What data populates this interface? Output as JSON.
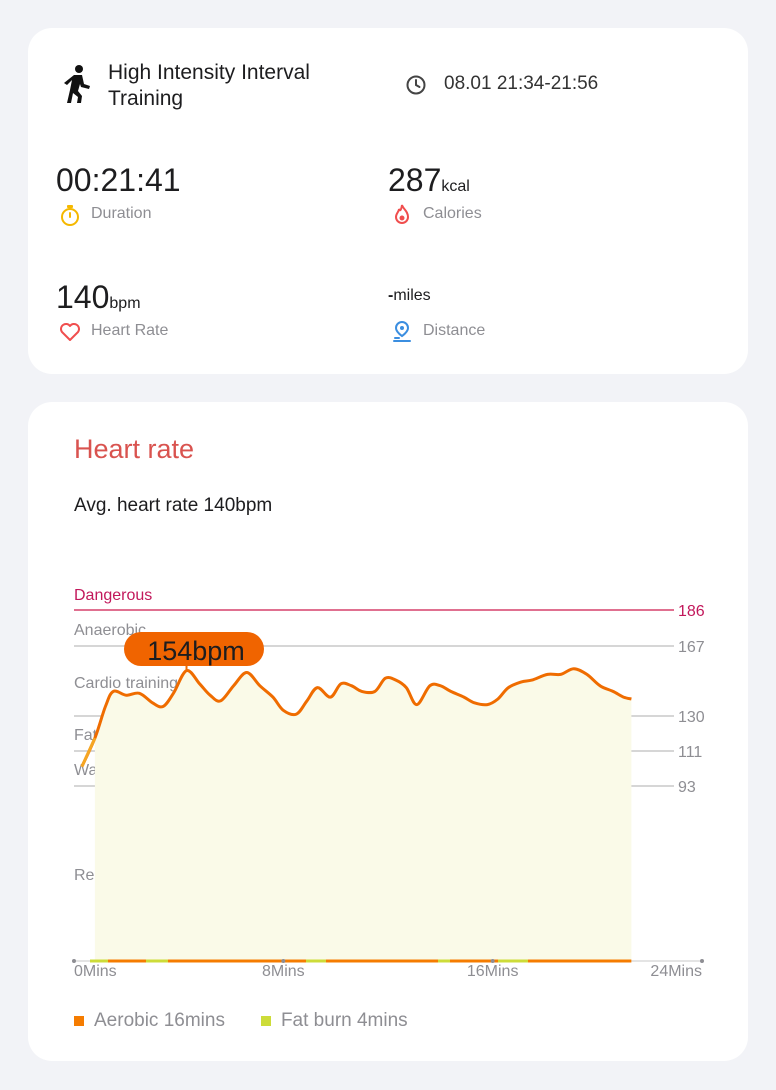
{
  "summary": {
    "workout_name": "High Intensity Interval Training",
    "workout_icon": "running-person-icon",
    "time_range": "08.01 21:34-21:56",
    "duration": {
      "value": "00:21:41",
      "label": "Duration",
      "icon": "stopwatch-icon",
      "color": "#f5b800"
    },
    "calories": {
      "value": "287",
      "unit": "kcal",
      "label": "Calories",
      "icon": "flame-icon",
      "color": "#f04e4e"
    },
    "heart_rate": {
      "value": "140",
      "unit": "bpm",
      "label": "Heart Rate",
      "icon": "heart-icon",
      "color": "#f04e4e"
    },
    "distance": {
      "value": "-",
      "unit": "miles",
      "label": "Distance",
      "icon": "location-pin-icon",
      "color": "#3b8ee0"
    }
  },
  "heart_rate_card": {
    "title": "Heart rate",
    "avg_text": "Avg. heart rate 140bpm",
    "tooltip": "154bpm",
    "legend": [
      {
        "label": "Aerobic 16mins",
        "color": "#f57c00"
      },
      {
        "label": "Fat burn 4mins",
        "color": "#cddc39"
      }
    ]
  },
  "chart_data": {
    "type": "line",
    "x_unit": "mins",
    "x_ticks": [
      "0Mins",
      "8Mins",
      "16Mins",
      "24Mins"
    ],
    "xlim": [
      0,
      24
    ],
    "ylim": [
      60,
      186
    ],
    "zones": [
      {
        "name": "Dangerous",
        "threshold": 186
      },
      {
        "name": "Anaerobic",
        "threshold": 167
      },
      {
        "name": "Cardio training",
        "threshold": 130
      },
      {
        "name": "Fat burning",
        "threshold": 111
      },
      {
        "name": "Warm up",
        "threshold": 93
      },
      {
        "name": "Resting",
        "threshold": null
      }
    ],
    "series": [
      {
        "x": [
          0.3,
          0.8,
          1.2,
          1.5,
          2.0,
          2.5,
          3.0,
          3.4,
          3.8,
          4.3,
          4.8,
          5.2,
          5.6,
          6.1,
          6.6,
          7.1,
          7.6,
          8.0,
          8.5,
          8.9,
          9.3,
          9.8,
          10.2,
          10.6,
          11.0,
          11.5,
          11.9,
          12.3,
          12.7,
          13.1,
          13.6,
          14.0,
          14.4,
          14.9,
          15.3,
          15.8,
          16.2,
          16.6,
          17.1,
          17.5,
          18.1,
          18.6,
          19.1,
          19.6,
          20.1,
          20.6,
          21.0,
          21.3
        ],
        "y": [
          103,
          118,
          135,
          143,
          141,
          142,
          137,
          135,
          142,
          154,
          147,
          141,
          138,
          146,
          153,
          146,
          140,
          133,
          131,
          138,
          145,
          140,
          147,
          146,
          143,
          143,
          150,
          149,
          145,
          136,
          146,
          146,
          143,
          140,
          137,
          136,
          139,
          145,
          148,
          149,
          152,
          152,
          155,
          152,
          146,
          143,
          140,
          139
        ]
      }
    ]
  }
}
